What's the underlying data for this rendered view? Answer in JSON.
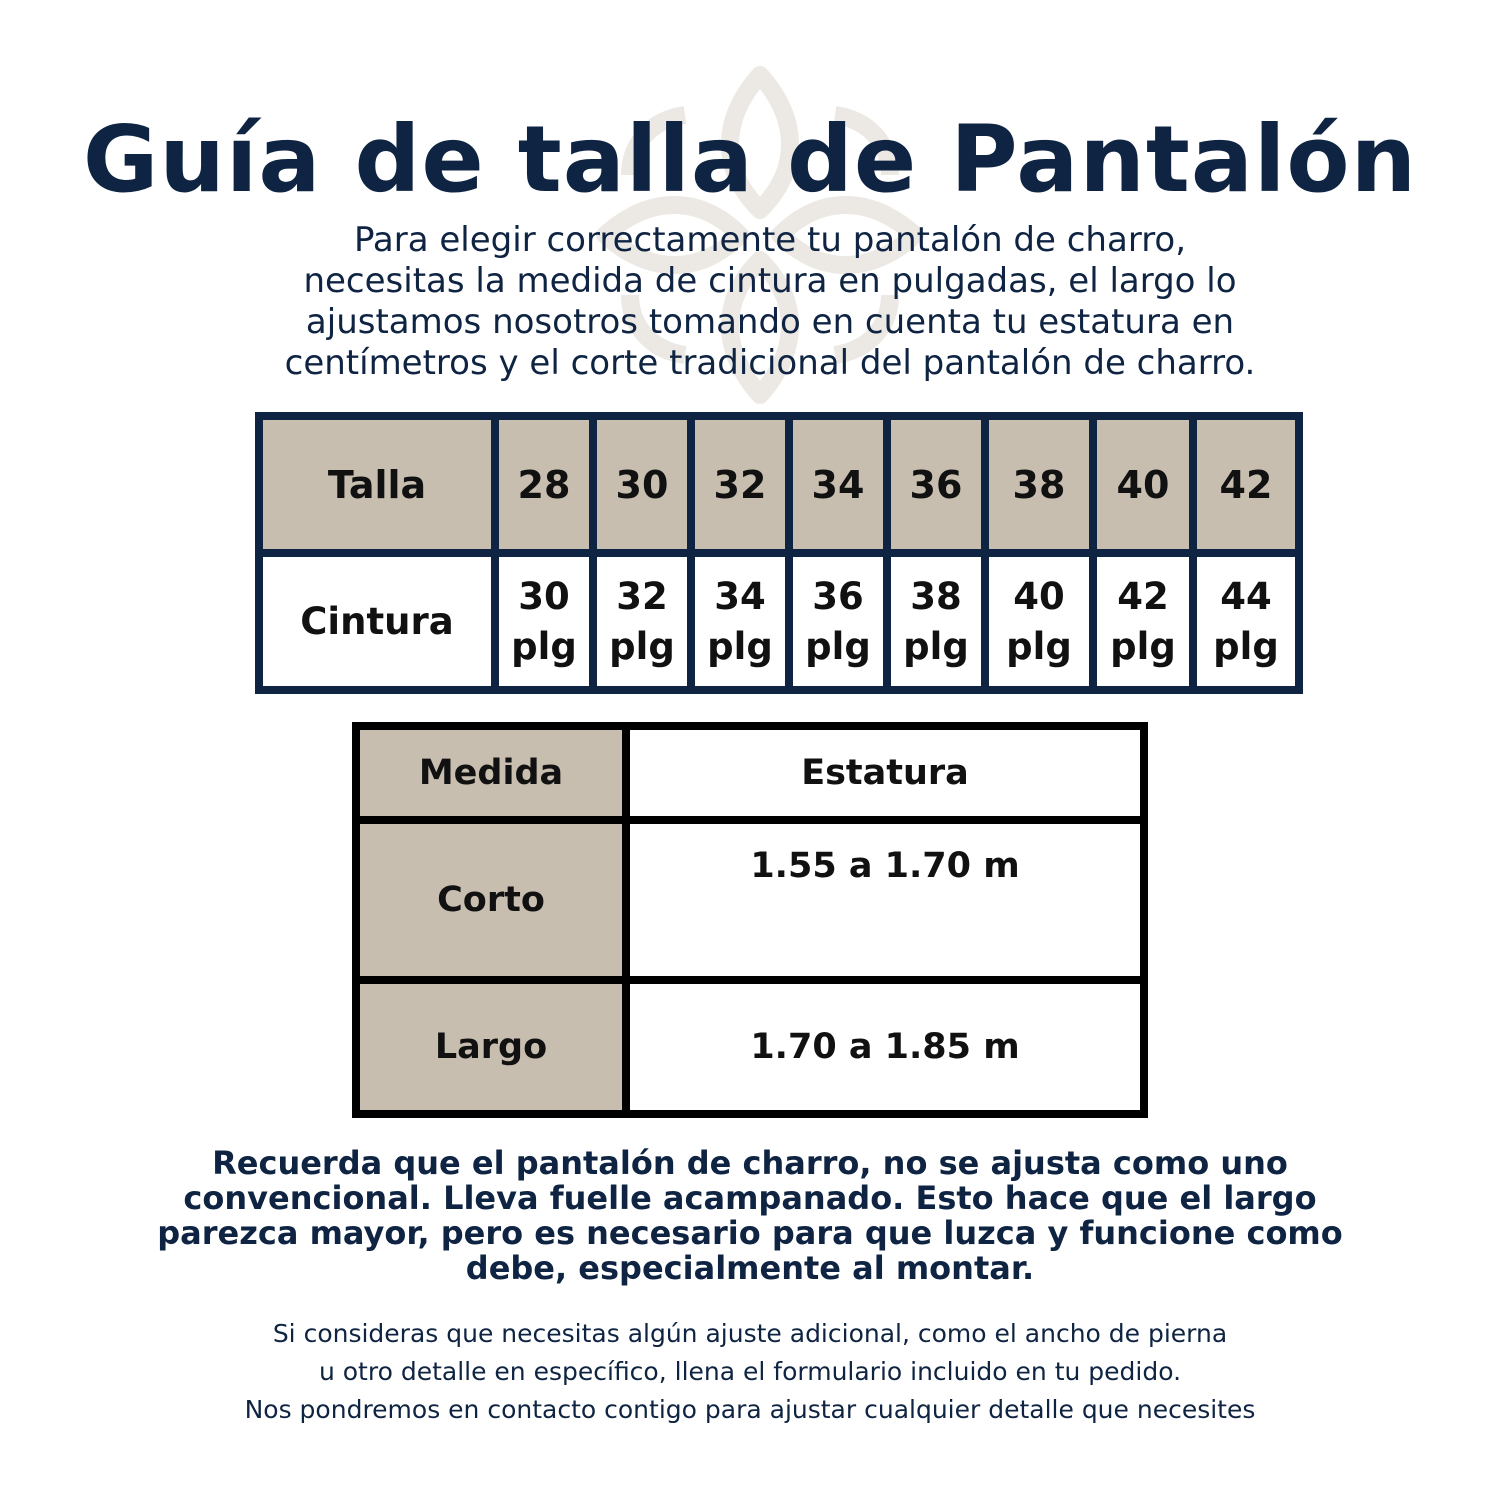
{
  "title": "Guía de talla de Pantalón",
  "subtitle_lines": [
    "Para elegir correctamente tu pantalón de charro,",
    "necesitas la medida de cintura en pulgadas, el largo lo",
    "ajustamos nosotros tomando en cuenta tu estatura en",
    "centímetros y el corte tradicional del pantalón de charro."
  ],
  "size_table": {
    "row1_label": "Talla",
    "row2_label": "Cintura",
    "sizes": [
      "28",
      "30",
      "32",
      "34",
      "36",
      "38",
      "40",
      "42"
    ],
    "waists": [
      "30",
      "32",
      "34",
      "36",
      "38",
      "40",
      "42",
      "44"
    ],
    "waist_unit": "plg"
  },
  "height_table": {
    "col1_header": "Medida",
    "col2_header": "Estatura",
    "rows": [
      {
        "medida": "Corto",
        "estatura": "1.55 a 1.70 m"
      },
      {
        "medida": "Largo",
        "estatura": "1.70 a 1.85 m"
      }
    ]
  },
  "notice_lines": [
    "Recuerda que el pantalón de charro, no se ajusta como uno",
    "convencional. Lleva fuelle acampanado. Esto hace que el largo",
    "parezca mayor, pero es necesario para que luzca y funcione como",
    "debe, especialmente al montar."
  ],
  "footer_lines": [
    "Si consideras que necesitas algún ajuste adicional, como el ancho de pierna",
    "u otro detalle en específico, llena el formulario incluido en tu pedido.",
    "Nos pondremos en contacto contigo para ajustar cualquier detalle que necesites"
  ],
  "colors": {
    "navy": "#0f2442",
    "beige": "#c7beb0",
    "watermark": "#ece9e4"
  },
  "icons": {
    "watermark": "ornamental-knot-logo"
  }
}
